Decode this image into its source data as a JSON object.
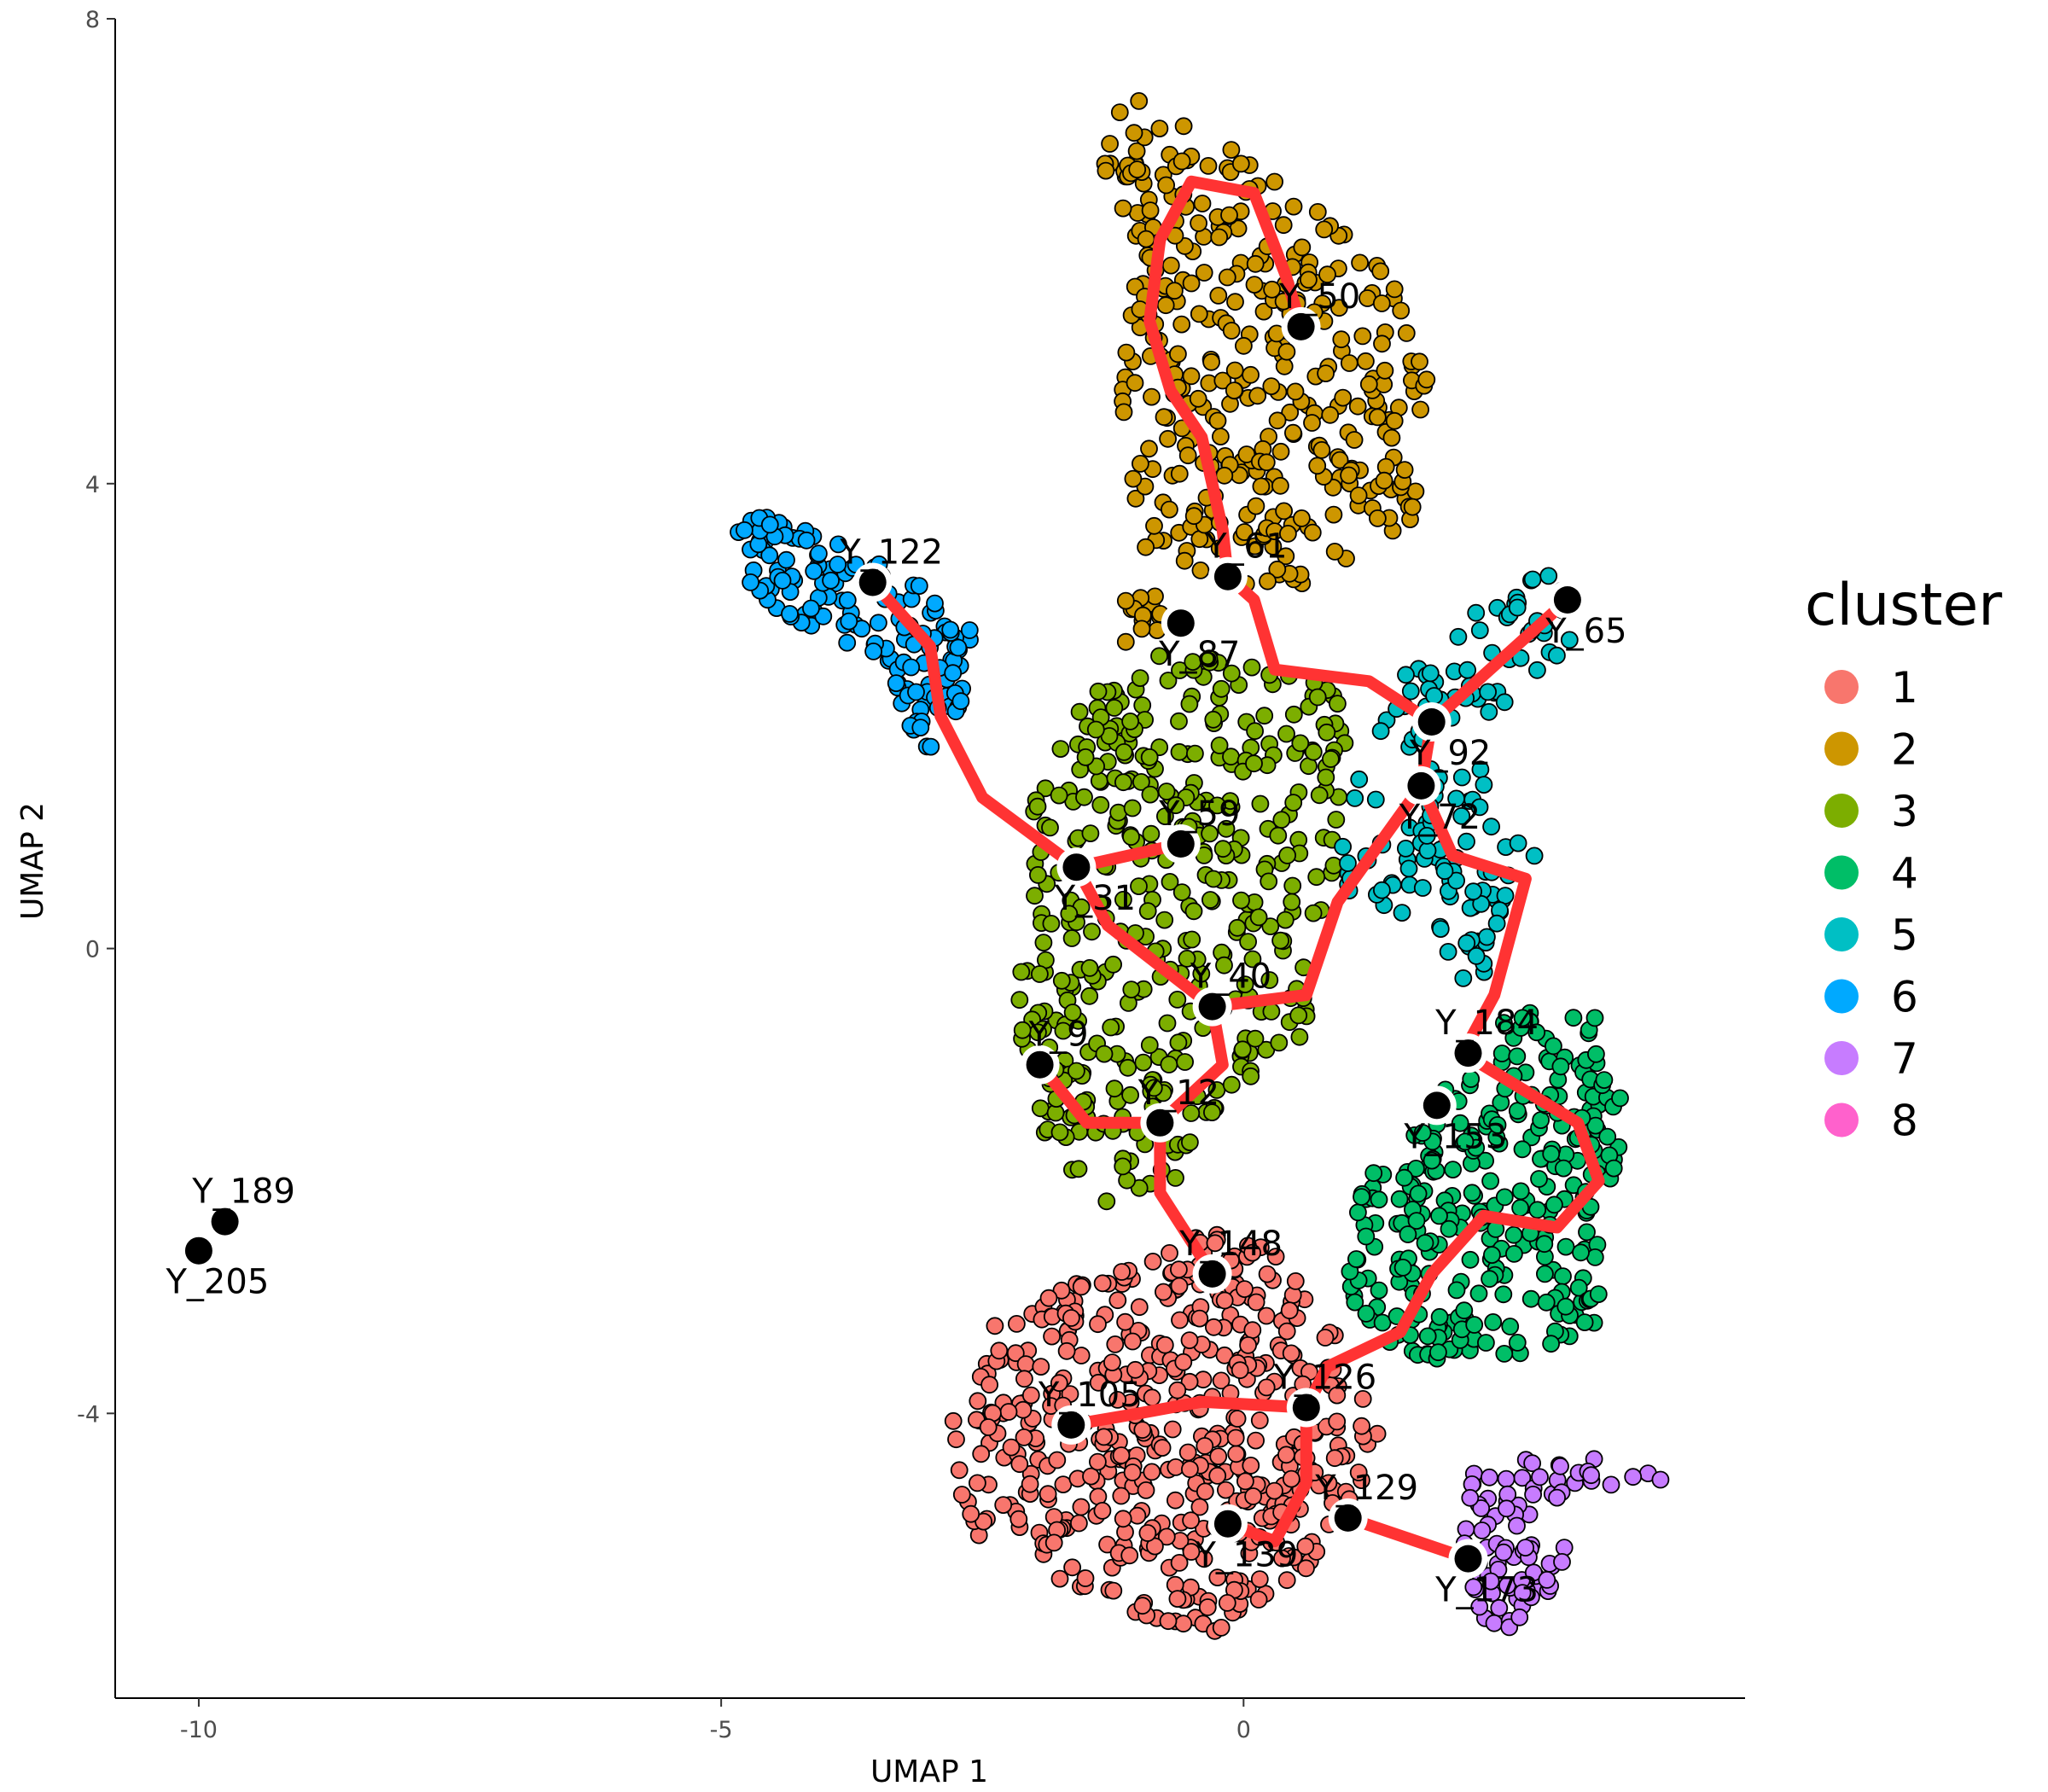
{
  "chart_data": {
    "type": "scatter",
    "xlabel": "UMAP 1",
    "ylabel": "UMAP 2",
    "xlim": [
      -10.8,
      4.8
    ],
    "ylim": [
      -6.45,
      8.0
    ],
    "x_ticks": [
      -10,
      -5,
      0
    ],
    "x_tick_labels": [
      "-10",
      "-5",
      "0"
    ],
    "y_ticks": [
      -4,
      0,
      4,
      8
    ],
    "y_tick_labels": [
      "-4",
      "0",
      "4",
      "8"
    ],
    "grid": false,
    "legend": {
      "title": "cluster",
      "position": "right",
      "entries": [
        {
          "label": "1",
          "color": "#F8766D"
        },
        {
          "label": "2",
          "color": "#CD9600"
        },
        {
          "label": "3",
          "color": "#7CAE00"
        },
        {
          "label": "4",
          "color": "#00BE67"
        },
        {
          "label": "5",
          "color": "#00BFC4"
        },
        {
          "label": "6",
          "color": "#00A9FF"
        },
        {
          "label": "7",
          "color": "#C77CFF"
        },
        {
          "label": "8",
          "color": "#FF61CC"
        }
      ]
    },
    "cluster_regions": [
      {
        "cluster": "1",
        "count": 520,
        "polygon": [
          [
            -2.9,
            -4.3
          ],
          [
            -2.4,
            -3.2
          ],
          [
            -1.4,
            -2.8
          ],
          [
            -0.3,
            -2.4
          ],
          [
            0.3,
            -2.6
          ],
          [
            1.0,
            -3.4
          ],
          [
            1.3,
            -4.2
          ],
          [
            0.8,
            -5.3
          ],
          [
            -0.3,
            -5.9
          ],
          [
            -1.5,
            -5.6
          ],
          [
            -2.7,
            -5.0
          ]
        ]
      },
      {
        "cluster": "2",
        "count": 380,
        "polygon": [
          [
            -1.4,
            6.8
          ],
          [
            -1.2,
            7.4
          ],
          [
            -0.3,
            7.0
          ],
          [
            0.8,
            6.3
          ],
          [
            1.4,
            5.9
          ],
          [
            1.8,
            4.8
          ],
          [
            1.6,
            3.5
          ],
          [
            1.0,
            3.2
          ],
          [
            -0.5,
            3.0
          ],
          [
            -1.3,
            2.3
          ],
          [
            -1.0,
            3.5
          ],
          [
            -1.2,
            4.8
          ],
          [
            -1.0,
            6.0
          ]
        ]
      },
      {
        "cluster": "3",
        "count": 420,
        "polygon": [
          [
            -2.1,
            1.3
          ],
          [
            -1.5,
            2.2
          ],
          [
            -0.7,
            2.6
          ],
          [
            0.9,
            2.3
          ],
          [
            1.1,
            1.5
          ],
          [
            0.8,
            0.5
          ],
          [
            0.6,
            -0.8
          ],
          [
            -0.2,
            -1.3
          ],
          [
            -0.6,
            -2.0
          ],
          [
            -1.4,
            -2.2
          ],
          [
            -2.1,
            -1.4
          ],
          [
            -2.2,
            -0.3
          ],
          [
            -2.0,
            0.7
          ]
        ]
      },
      {
        "cluster": "4",
        "count": 300,
        "polygon": [
          [
            1.0,
            -2.2
          ],
          [
            1.8,
            -1.3
          ],
          [
            2.7,
            -0.4
          ],
          [
            3.4,
            -0.6
          ],
          [
            3.7,
            -1.4
          ],
          [
            3.4,
            -2.4
          ],
          [
            3.4,
            -3.3
          ],
          [
            2.2,
            -3.6
          ],
          [
            1.5,
            -3.5
          ],
          [
            1.0,
            -3.0
          ]
        ]
      },
      {
        "cluster": "5",
        "count": 150,
        "polygon": [
          [
            0.9,
            1.0
          ],
          [
            1.3,
            1.9
          ],
          [
            1.6,
            2.5
          ],
          [
            2.8,
            3.3
          ],
          [
            3.4,
            3.2
          ],
          [
            3.2,
            2.6
          ],
          [
            2.2,
            1.8
          ],
          [
            2.9,
            0.7
          ],
          [
            2.2,
            -0.4
          ],
          [
            1.6,
            0.3
          ],
          [
            1.0,
            0.3
          ]
        ]
      },
      {
        "cluster": "6",
        "count": 150,
        "polygon": [
          [
            -4.9,
            3.3
          ],
          [
            -4.8,
            3.8
          ],
          [
            -4.2,
            3.6
          ],
          [
            -3.3,
            3.3
          ],
          [
            -2.6,
            2.8
          ],
          [
            -2.6,
            2.2
          ],
          [
            -3.0,
            1.6
          ],
          [
            -3.6,
            2.5
          ],
          [
            -4.5,
            2.9
          ]
        ]
      },
      {
        "cluster": "7",
        "count": 90,
        "polygon": [
          [
            2.2,
            -4.5
          ],
          [
            3.1,
            -4.3
          ],
          [
            4.1,
            -4.4
          ],
          [
            4.0,
            -4.7
          ],
          [
            3.2,
            -4.6
          ],
          [
            2.7,
            -5.0
          ],
          [
            2.3,
            -5.1
          ],
          [
            3.4,
            -5.1
          ],
          [
            2.5,
            -5.9
          ],
          [
            2.0,
            -5.6
          ]
        ]
      }
    ],
    "trajectory": [
      [
        [
          -3.55,
          3.15
        ],
        [
          -3.0,
          2.6
        ],
        [
          -2.9,
          2.0
        ],
        [
          -2.5,
          1.3
        ],
        [
          -1.6,
          0.7
        ],
        [
          -1.3,
          0.2
        ],
        [
          -0.3,
          -0.5
        ],
        [
          -0.2,
          -1.0
        ],
        [
          -0.8,
          -1.5
        ],
        [
          -0.8,
          -2.1
        ],
        [
          -0.3,
          -2.8
        ]
      ],
      [
        [
          -1.6,
          0.7
        ],
        [
          -0.6,
          0.9
        ]
      ],
      [
        [
          -1.95,
          -1.0
        ],
        [
          -1.5,
          -1.5
        ],
        [
          -0.8,
          -1.5
        ]
      ],
      [
        [
          -0.3,
          -0.5
        ],
        [
          0.6,
          -0.4
        ],
        [
          0.9,
          0.4
        ],
        [
          1.7,
          1.4
        ],
        [
          1.8,
          1.95
        ]
      ],
      [
        [
          1.8,
          1.95
        ],
        [
          3.1,
          3.0
        ]
      ],
      [
        [
          1.8,
          1.95
        ],
        [
          1.2,
          2.3
        ],
        [
          0.3,
          2.4
        ],
        [
          0.1,
          3.0
        ],
        [
          -0.15,
          3.2
        ],
        [
          -0.2,
          3.6
        ],
        [
          -0.4,
          4.4
        ],
        [
          -0.7,
          4.8
        ],
        [
          -0.9,
          5.4
        ],
        [
          -0.8,
          6.1
        ],
        [
          -0.5,
          6.6
        ],
        [
          0.1,
          6.5
        ],
        [
          0.4,
          5.8
        ],
        [
          0.55,
          5.35
        ]
      ],
      [
        [
          1.7,
          1.4
        ],
        [
          2.0,
          0.8
        ],
        [
          2.7,
          0.6
        ],
        [
          2.4,
          -0.4
        ],
        [
          2.1,
          -0.9
        ],
        [
          3.2,
          -1.5
        ],
        [
          3.4,
          -2.0
        ],
        [
          3.0,
          -2.4
        ],
        [
          2.3,
          -2.3
        ],
        [
          1.8,
          -2.8
        ],
        [
          1.5,
          -3.3
        ],
        [
          0.8,
          -3.6
        ],
        [
          0.6,
          -3.95
        ]
      ],
      [
        [
          0.6,
          -3.95
        ],
        [
          -0.4,
          -3.9
        ],
        [
          -1.0,
          -4.0
        ],
        [
          -1.65,
          -4.1
        ]
      ],
      [
        [
          0.6,
          -3.95
        ],
        [
          0.6,
          -4.6
        ],
        [
          0.3,
          -5.1
        ],
        [
          -0.15,
          -4.95
        ]
      ],
      [
        [
          1.0,
          -4.9
        ],
        [
          2.15,
          -5.25
        ]
      ]
    ],
    "nodes": [
      {
        "label": "Y_50",
        "x": 0.55,
        "y": 5.35,
        "anchor": "top"
      },
      {
        "label": "Y_61",
        "x": -0.15,
        "y": 3.2,
        "anchor": "top"
      },
      {
        "label": "Y_122",
        "x": -3.55,
        "y": 3.15,
        "anchor": "top"
      },
      {
        "label": "Y_87",
        "x": -0.6,
        "y": 2.8,
        "anchor": "bottom"
      },
      {
        "label": "Y_65",
        "x": 3.1,
        "y": 3.0,
        "anchor": "bottom"
      },
      {
        "label": "Y_92",
        "x": 1.8,
        "y": 1.95,
        "anchor": "bottom"
      },
      {
        "label": "Y_72",
        "x": 1.7,
        "y": 1.4,
        "anchor": "bottom"
      },
      {
        "label": "Y_59",
        "x": -0.6,
        "y": 0.9,
        "anchor": "top"
      },
      {
        "label": "Y_31",
        "x": -1.6,
        "y": 0.7,
        "anchor": "bottom"
      },
      {
        "label": "Y_40",
        "x": -0.3,
        "y": -0.5,
        "anchor": "top"
      },
      {
        "label": "Y_184",
        "x": 2.15,
        "y": -0.9,
        "anchor": "top"
      },
      {
        "label": "Y_9",
        "x": -1.95,
        "y": -1.0,
        "anchor": "top"
      },
      {
        "label": "Y_12",
        "x": -0.8,
        "y": -1.5,
        "anchor": "top"
      },
      {
        "label": "Y_153",
        "x": 1.85,
        "y": -1.35,
        "anchor": "bottom"
      },
      {
        "label": "Y_189",
        "x": -9.75,
        "y": -2.35,
        "anchor": "top"
      },
      {
        "label": "Y_205",
        "x": -10.0,
        "y": -2.6,
        "anchor": "bottom"
      },
      {
        "label": "Y_148",
        "x": -0.3,
        "y": -2.8,
        "anchor": "top"
      },
      {
        "label": "Y_126",
        "x": 0.6,
        "y": -3.95,
        "anchor": "top"
      },
      {
        "label": "Y_105",
        "x": -1.65,
        "y": -4.1,
        "anchor": "top"
      },
      {
        "label": "Y_129",
        "x": 1.0,
        "y": -4.9,
        "anchor": "top"
      },
      {
        "label": "Y_139",
        "x": -0.15,
        "y": -4.95,
        "anchor": "bottom"
      },
      {
        "label": "Y_173",
        "x": 2.15,
        "y": -5.25,
        "anchor": "bottom"
      }
    ],
    "trajectory_color": "#FF3333",
    "node_color": "#000000"
  }
}
